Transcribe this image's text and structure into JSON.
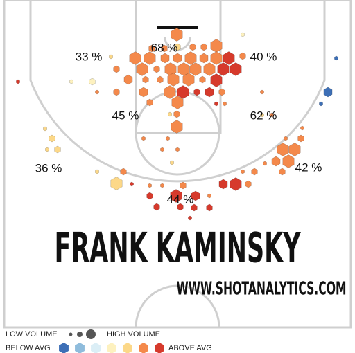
{
  "chart_data": {
    "type": "hexbin",
    "title": "FRANK KAMINSKY",
    "source": "WWW.SHOTANALYTICS.COM",
    "xlim": [
      -25,
      25
    ],
    "ylim": [
      -5,
      42.3
    ],
    "colors": [
      "#3d6fb6",
      "#8fbcdc",
      "#dbeef6",
      "#fdf1bf",
      "#fcd888",
      "#f4894b",
      "#d63a2c"
    ],
    "zones": {
      "values": [
        33,
        68,
        40,
        45,
        62,
        36,
        42,
        44
      ],
      "value_labels": [
        "33 %",
        "68 %",
        "40 %",
        "45 %",
        "62 %",
        "36 %",
        "42 %",
        "44 %"
      ]
    },
    "hexes": {
      "x": [
        -0.1,
        -3.7,
        -1.9,
        0,
        2.2,
        3.8,
        5.6,
        7.4,
        9.4,
        9.4,
        -6.1,
        -4,
        -1.8,
        0,
        1.9,
        3.8,
        5.6,
        -5.1,
        -3,
        -1,
        0.9,
        2.6,
        4.6,
        6.6,
        8.4,
        -8.8,
        -7.1,
        -4.6,
        -2.5,
        -0.6,
        1.6,
        3.6,
        5.6,
        -8.8,
        -4.9,
        -1.1,
        0.8,
        2.8,
        4.6,
        6.4,
        12.2,
        -4,
        0,
        5.6,
        6.8,
        -1.1,
        -0.1,
        -0.1,
        -9.6,
        -12.3,
        -15.3,
        -11.6,
        -23,
        22.9,
        21.7,
        20.7,
        -19.1,
        -18.1,
        -17.3,
        -18.8,
        -11.6,
        -8.8,
        -7.8,
        -6.6,
        -4.9,
        -1.4,
        -2.2,
        0,
        -0.8,
        -4,
        -4,
        -2.2,
        -0.2,
        0.8,
        2.6,
        2.4,
        4.6,
        -3,
        0.4,
        1.8,
        4.6,
        6.6,
        8.4,
        10.2,
        9.4,
        11.1,
        12.6,
        14.2,
        15.1,
        16,
        15.2,
        16.9,
        17.8,
        18,
        15.6,
        13.6,
        12.2
      ],
      "y": [
        0,
        2,
        2,
        1.8,
        1.8,
        1.8,
        1.6,
        3.4,
        0,
        3.1,
        3.4,
        3.4,
        3.4,
        3.4,
        3.4,
        3.4,
        3.4,
        5,
        5,
        5,
        5,
        5,
        5,
        5,
        5,
        5,
        6.5,
        6.5,
        6.5,
        6.5,
        6.5,
        6.5,
        6.6,
        8.3,
        8.3,
        8.3,
        8.3,
        8.3,
        8.3,
        8.3,
        8.3,
        9.8,
        9.8,
        10,
        10,
        11.5,
        11.5,
        13.3,
        3.2,
        6.8,
        6.8,
        8.3,
        6.8,
        3.4,
        8.3,
        10,
        13.6,
        15,
        16.6,
        16.6,
        19.8,
        21.5,
        19.8,
        21.6,
        15,
        15,
        16.6,
        16.6,
        18.5,
        23.3,
        21.8,
        21.8,
        23.3,
        21.8,
        23.3,
        25,
        25,
        24.9,
        24.9,
        26.5,
        23.3,
        21.6,
        21.6,
        21.6,
        19.8,
        19.8,
        18.6,
        18.3,
        19.8,
        18.3,
        16.6,
        16.6,
        15,
        13.5,
        15,
        11.6,
        11.6
      ],
      "volume": [
        4,
        2,
        2,
        2,
        2,
        2,
        4,
        4,
        1,
        2,
        4,
        4,
        3,
        3,
        4,
        3,
        4,
        4,
        2,
        4,
        4,
        4,
        4,
        4,
        4,
        2,
        3,
        2,
        2,
        4,
        4,
        2,
        4,
        2,
        3,
        4,
        4,
        2,
        3,
        2,
        1,
        2,
        4,
        1,
        1,
        1,
        2,
        4,
        1,
        2,
        1,
        1,
        1,
        1,
        3,
        1,
        1,
        2,
        2,
        1,
        1,
        4,
        2,
        1,
        1,
        1,
        1,
        1,
        1,
        2,
        1,
        1,
        4,
        2,
        3,
        2,
        2,
        2,
        2,
        1,
        1,
        3,
        4,
        2,
        1,
        2,
        1,
        3,
        2,
        4,
        4,
        4,
        2,
        1,
        1,
        1,
        1
      ],
      "level": [
        5,
        5,
        5,
        4,
        5,
        5,
        5,
        6,
        3,
        5,
        5,
        5,
        5,
        5,
        5,
        5,
        5,
        5,
        5,
        5,
        5,
        5,
        5,
        6,
        6,
        5,
        5,
        5,
        5,
        5,
        5,
        5,
        6,
        5,
        5,
        5,
        6,
        6,
        6,
        5,
        5,
        5,
        5,
        6,
        5,
        4,
        5,
        5,
        4,
        3,
        3,
        5,
        6,
        0,
        0,
        0,
        4,
        4,
        4,
        4,
        4,
        4,
        5,
        6,
        5,
        5,
        5,
        5,
        4,
        6,
        5,
        5,
        6,
        5,
        6,
        6,
        6,
        6,
        6,
        6,
        5,
        6,
        6,
        5,
        5,
        5,
        5,
        5,
        5,
        5,
        5,
        5,
        5,
        5,
        5,
        5,
        4
      ]
    },
    "legend": {
      "low_volume": "LOW VOLUME",
      "high_volume": "HIGH VOLUME",
      "below_avg": "BELOW AVG",
      "above_avg": "ABOVE AVG"
    }
  }
}
